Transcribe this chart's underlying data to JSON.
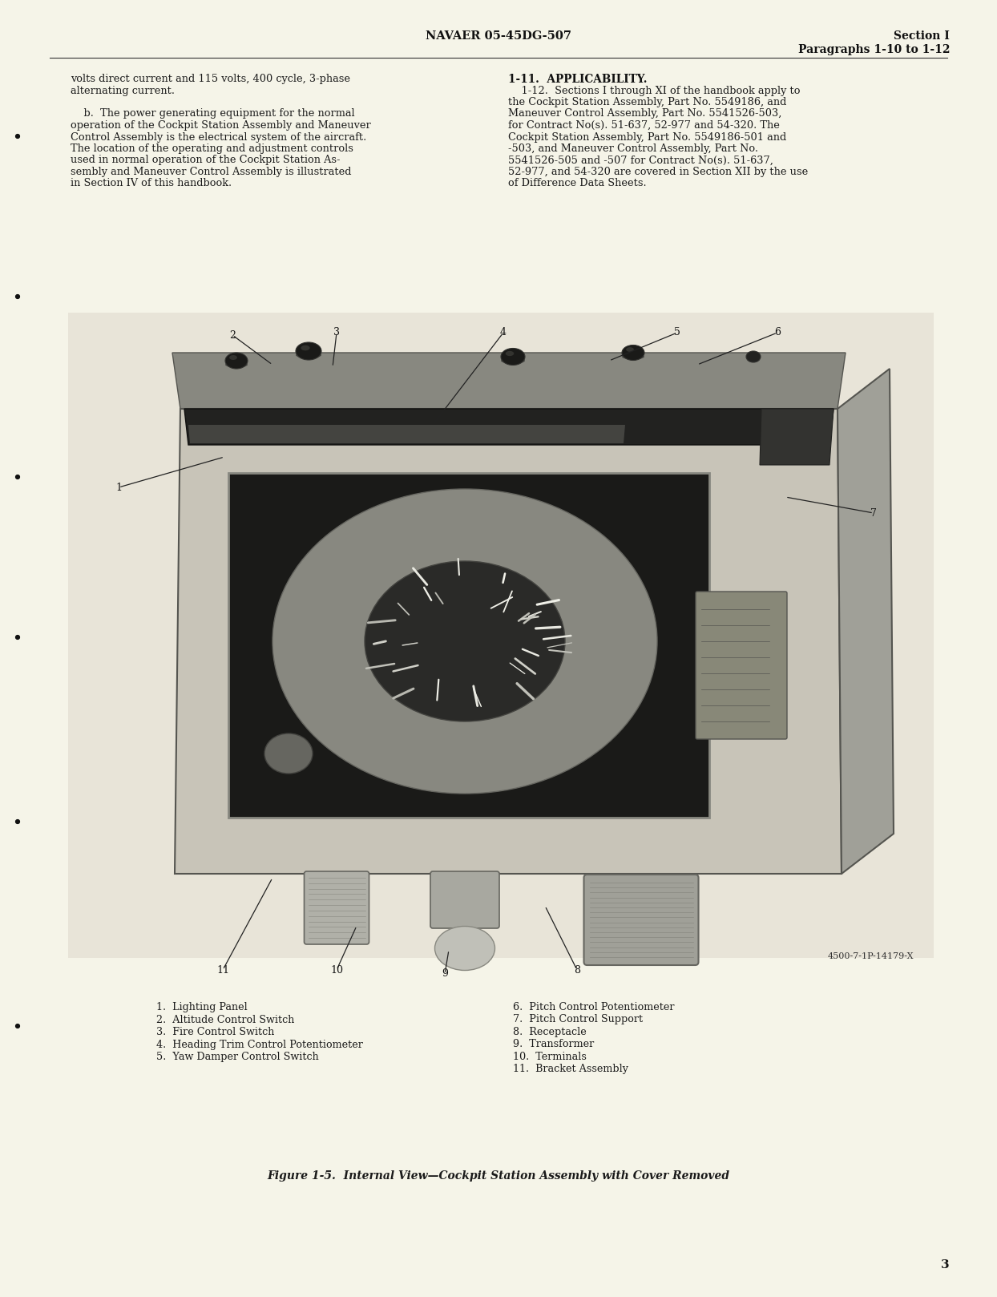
{
  "page_bg": "#f5f4e8",
  "header_center": "NAVAER 05-45DG-507",
  "header_right_line1": "Section I",
  "header_right_line2": "Paragraphs 1-10 to 1-12",
  "left_col_text": [
    "volts direct current and 115 volts, 400 cycle, 3-phase",
    "alternating current.",
    "",
    "    b.  The power generating equipment for the normal",
    "operation of the Cockpit Station Assembly and Maneuver",
    "Control Assembly is the electrical system of the aircraft.",
    "The location of the operating and adjustment controls",
    "used in normal operation of the Cockpit Station As-",
    "sembly and Maneuver Control Assembly is illustrated",
    "in Section IV of this handbook."
  ],
  "right_col_heading": "1-11.  APPLICABILITY.",
  "right_col_text": [
    "    1-12.  Sections I through XI of the handbook apply to",
    "the Cockpit Station Assembly, Part No. 5549186, and",
    "Maneuver Control Assembly, Part No. 5541526-503,",
    "for Contract No(s). 51-637, 52-977 and 54-320. The",
    "Cockpit Station Assembly, Part No. 5549186-501 and",
    "-503, and Maneuver Control Assembly, Part No.",
    "5541526-505 and -507 for Contract No(s). 51-637,",
    "52-977, and 54-320 are covered in Section XII by the use",
    "of Difference Data Sheets."
  ],
  "caption_line1": "Figure 1-5.  Internal View—Cockpit Station Assembly with Cover Removed",
  "figure_label": "4500-7-1P-14179-X",
  "legend_left": [
    "1.  Lighting Panel",
    "2.  Altitude Control Switch",
    "3.  Fire Control Switch",
    "4.  Heading Trim Control Potentiometer",
    "5.  Yaw Damper Control Switch"
  ],
  "legend_right": [
    "6.  Pitch Control Potentiometer",
    "7.  Pitch Control Support",
    "8.  Receptacle",
    "9.  Transformer",
    "10.  Terminals",
    "11.  Bracket Assembly"
  ],
  "page_number": "3",
  "text_color": "#1a1a1a",
  "header_color": "#111111"
}
